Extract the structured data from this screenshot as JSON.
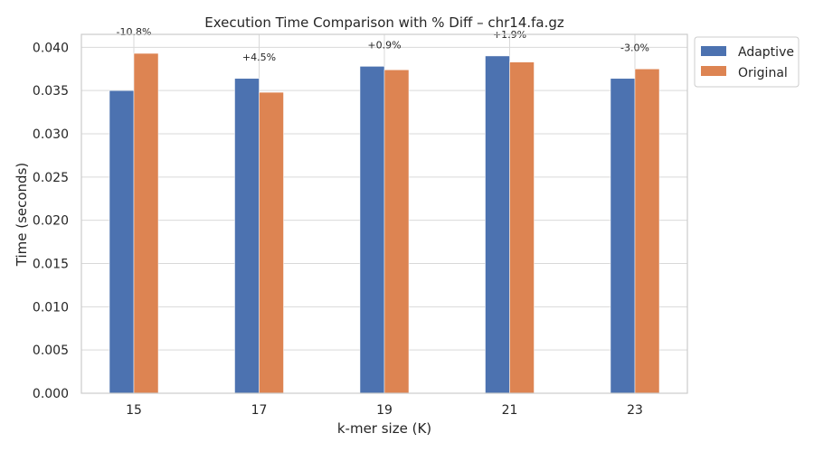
{
  "chart_data": {
    "type": "bar",
    "title": "Execution Time Comparison with % Diff – chr14.fa.gz",
    "xlabel": "k-mer size (K)",
    "ylabel": "Time (seconds)",
    "categories": [
      "15",
      "17",
      "19",
      "21",
      "23"
    ],
    "series": [
      {
        "name": "Adaptive",
        "color": "#4c72b0",
        "values": [
          0.035,
          0.0364,
          0.0378,
          0.039,
          0.0364
        ]
      },
      {
        "name": "Original",
        "color": "#dd8452",
        "values": [
          0.0393,
          0.0348,
          0.0374,
          0.0383,
          0.0375
        ]
      }
    ],
    "annotations": [
      "-10.8%",
      "+4.5%",
      "+0.9%",
      "+1.9%",
      "-3.0%"
    ],
    "yticks": [
      "0.000",
      "0.005",
      "0.010",
      "0.015",
      "0.020",
      "0.025",
      "0.030",
      "0.035",
      "0.040"
    ],
    "ylim": [
      0,
      0.0415
    ],
    "grid": true,
    "legend_position": "outside-top-right"
  }
}
